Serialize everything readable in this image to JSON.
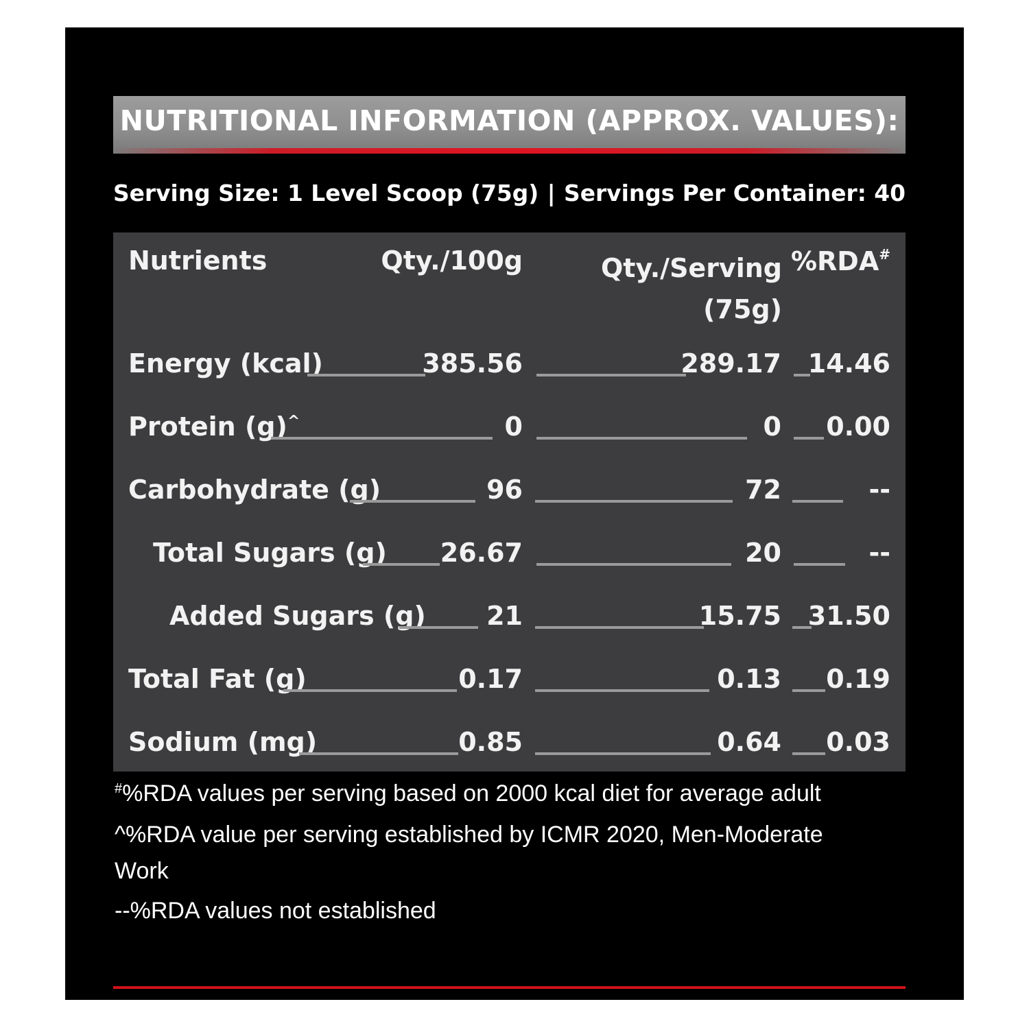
{
  "title": "NUTRITIONAL INFORMATION (APPROX. VALUES):",
  "serving": {
    "size": "Serving Size: 1 Level Scoop (75g)",
    "separator": "|",
    "per_container": "Servings Per Container: 40"
  },
  "table": {
    "headers": {
      "nutrients": "Nutrients",
      "qty_100g": "Qty./100g",
      "qty_serving_line1": "Qty./Serving",
      "qty_serving_line2": "(75g)",
      "rda": "%RDA",
      "rda_mark": "#"
    },
    "rows": [
      {
        "name": "Energy (kcal)",
        "mark": "",
        "qty_100g": "385.56",
        "qty_serving": "289.17",
        "rda": "14.46"
      },
      {
        "name": "Protein (g)",
        "mark": "^",
        "qty_100g": "0",
        "qty_serving": "0",
        "rda": "0.00"
      },
      {
        "name": "Carbohydrate (g)",
        "mark": "",
        "qty_100g": "96",
        "qty_serving": "72",
        "rda": "--"
      },
      {
        "name": "Total Sugars (g)",
        "mark": "",
        "qty_100g": "26.67",
        "qty_serving": "20",
        "rda": "--"
      },
      {
        "name": "Added Sugars (g)",
        "mark": "",
        "qty_100g": "21",
        "qty_serving": "15.75",
        "rda": "31.50"
      },
      {
        "name": "Total Fat (g)",
        "mark": "",
        "qty_100g": "0.17",
        "qty_serving": "0.13",
        "rda": "0.19"
      },
      {
        "name": "Sodium (mg)",
        "mark": "",
        "qty_100g": "0.85",
        "qty_serving": "0.64",
        "rda": "0.03"
      }
    ]
  },
  "footnotes": {
    "f1_mark": "#",
    "f1_text": "%RDA values per serving based on 2000 kcal diet for average adult",
    "f2_line1": "^%RDA value per serving established by ICMR 2020, Men-Moderate",
    "f2_line2": "Work",
    "f3": "--%RDA values not established"
  },
  "colors": {
    "background": "#000000",
    "table_bg": "#3d3d3f",
    "title_bar": "#8d8d8d",
    "accent_red": "#d0121c",
    "leader": "#9a9a9a",
    "text": "#ffffff"
  }
}
